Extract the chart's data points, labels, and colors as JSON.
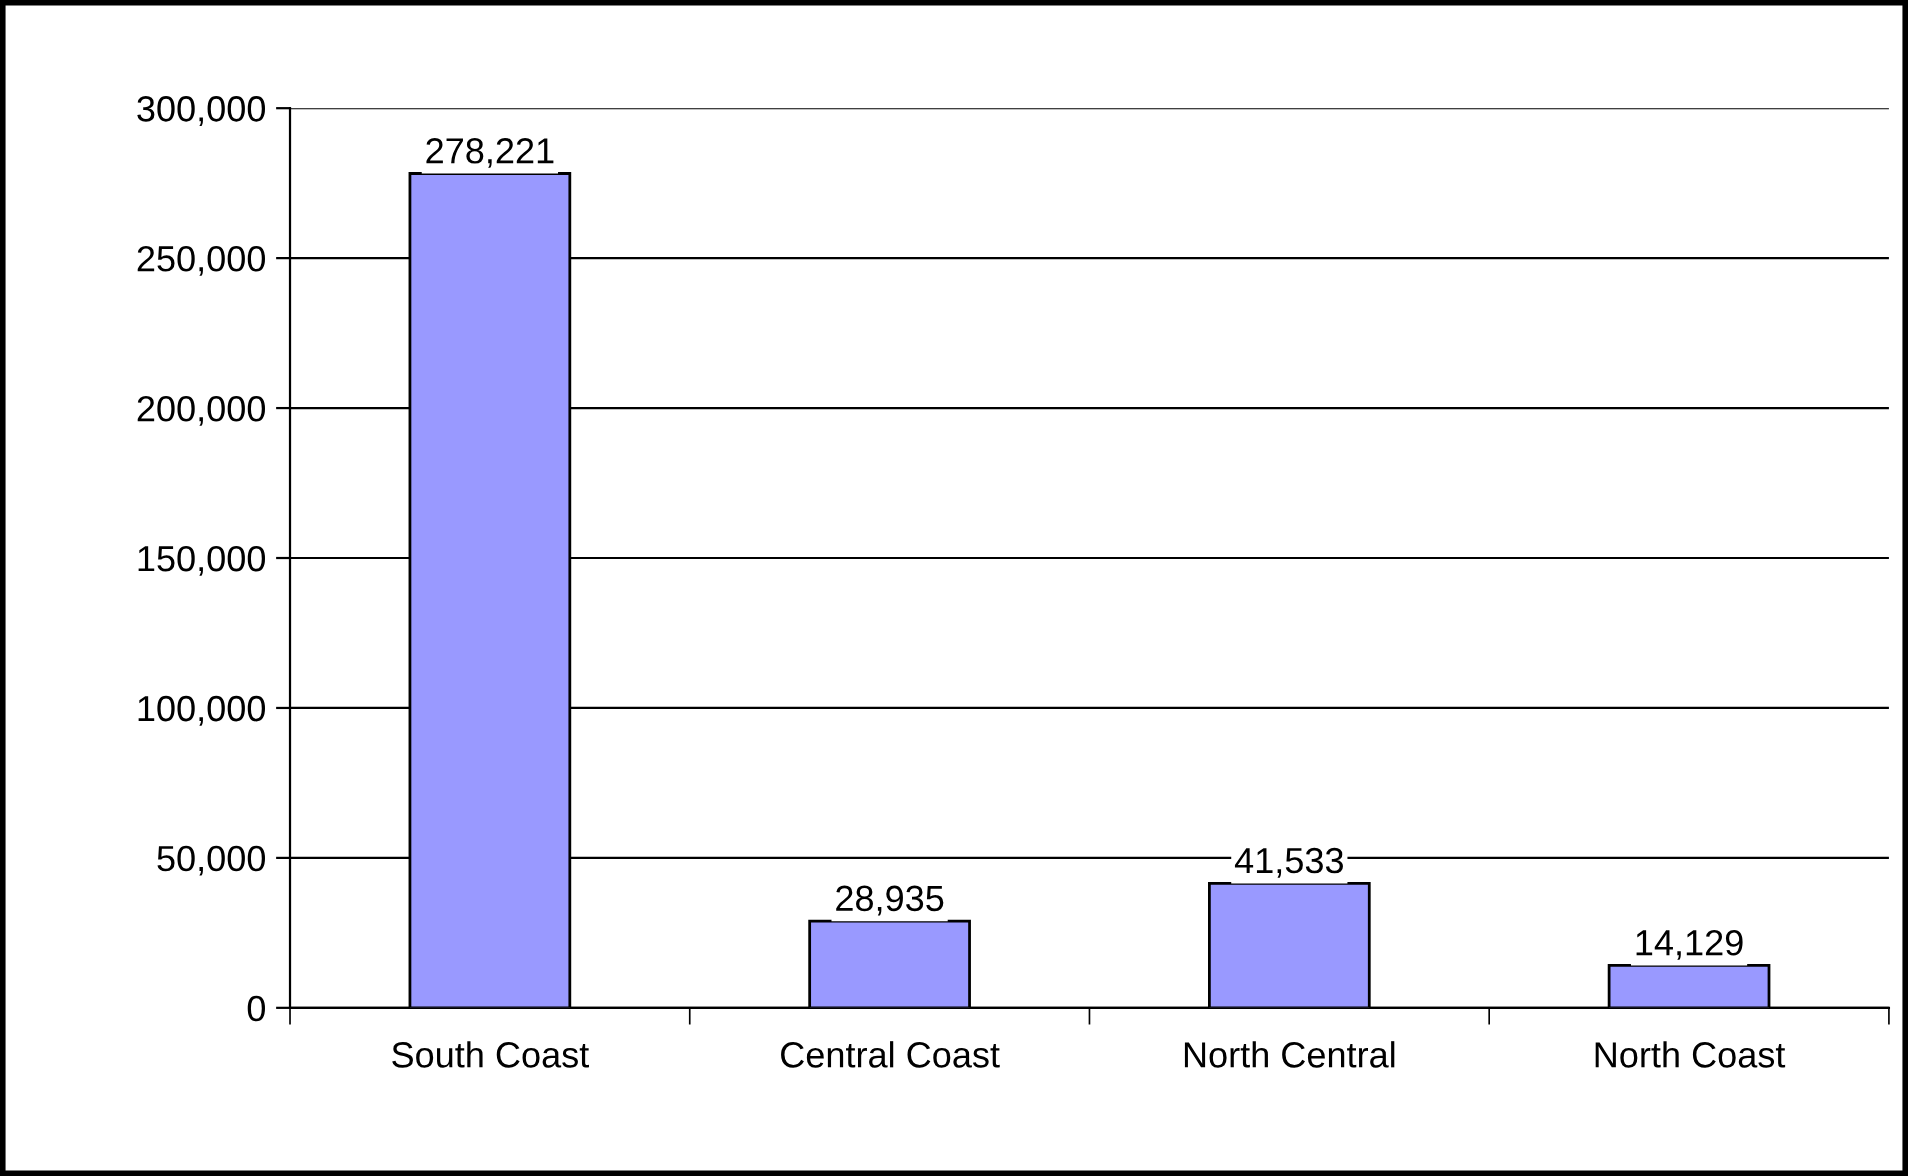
{
  "chart_data": {
    "type": "bar",
    "categories": [
      "South Coast",
      "Central Coast",
      "North Central",
      "North Coast"
    ],
    "values": [
      278221,
      28935,
      41533,
      14129
    ],
    "value_labels": [
      "278,221",
      "28,935",
      "41,533",
      "14,129"
    ],
    "color": "#9999ff",
    "ylim": [
      0,
      300000
    ],
    "yticks": [
      {
        "value": 0,
        "label": "0"
      },
      {
        "value": 50000,
        "label": "50,000"
      },
      {
        "value": 100000,
        "label": "100,000"
      },
      {
        "value": 150000,
        "label": "150,000"
      },
      {
        "value": 200000,
        "label": "200,000"
      },
      {
        "value": 250000,
        "label": "250,000"
      },
      {
        "value": 300000,
        "label": "300,000"
      }
    ],
    "grid": "y",
    "legend": false
  }
}
